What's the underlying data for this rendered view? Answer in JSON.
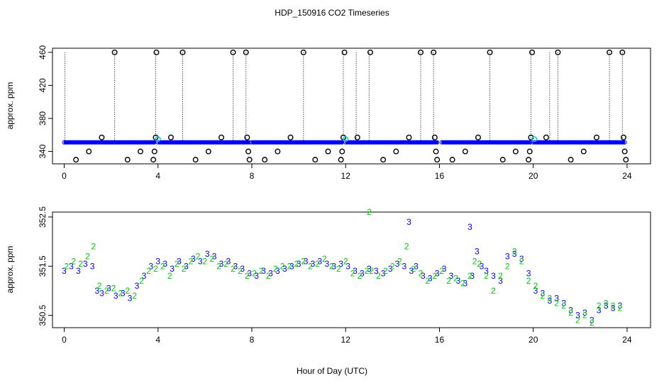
{
  "figure": {
    "title": "HDP_150916  CO2 Timeseries",
    "xlabel": "Hour of Day (UTC)"
  },
  "colors": {
    "axis": "#000000",
    "series_blue": "#0000ff",
    "series_green": "#00cc00",
    "series_cyan": "#00cccc",
    "series_black": "#000000"
  },
  "chart_data": [
    {
      "type": "scatter",
      "title": "",
      "xlabel": "",
      "ylabel": "approx. ppm",
      "xlim": [
        -0.5,
        25
      ],
      "ylim": [
        325,
        465
      ],
      "xticks": [
        0,
        4,
        8,
        12,
        16,
        20,
        24
      ],
      "yticks": [
        340,
        380,
        420,
        460
      ],
      "grid": false,
      "legend": "none",
      "baseline": {
        "value": 351,
        "segments": [
          [
            0.0,
            3.9
          ],
          [
            4.0,
            7.9
          ],
          [
            8.0,
            11.9
          ],
          [
            12.0,
            15.95
          ],
          [
            16.1,
            19.9
          ],
          [
            20.0,
            23.9
          ]
        ],
        "color": "#0000ff"
      },
      "dotted_spikes": [
        0.03,
        2.15,
        3.9,
        5.05,
        7.2,
        7.75,
        10.2,
        11.9,
        12.45,
        13.0,
        15.2,
        15.75,
        18.15,
        19.9,
        20.7,
        21.05,
        23.25,
        23.8
      ],
      "markers_circle": [
        {
          "x": 0.5,
          "y": 330
        },
        {
          "x": 1.05,
          "y": 340
        },
        {
          "x": 1.6,
          "y": 357
        },
        {
          "x": 2.15,
          "y": 460
        },
        {
          "x": 2.7,
          "y": 330
        },
        {
          "x": 3.25,
          "y": 340
        },
        {
          "x": 3.8,
          "y": 330
        },
        {
          "x": 3.85,
          "y": 340
        },
        {
          "x": 3.9,
          "y": 357
        },
        {
          "x": 3.93,
          "y": 460
        },
        {
          "x": 4.55,
          "y": 357
        },
        {
          "x": 5.05,
          "y": 460
        },
        {
          "x": 5.6,
          "y": 330
        },
        {
          "x": 6.15,
          "y": 340
        },
        {
          "x": 6.7,
          "y": 357
        },
        {
          "x": 7.2,
          "y": 460
        },
        {
          "x": 7.75,
          "y": 460
        },
        {
          "x": 7.8,
          "y": 357
        },
        {
          "x": 7.85,
          "y": 340
        },
        {
          "x": 7.9,
          "y": 330
        },
        {
          "x": 8.55,
          "y": 330
        },
        {
          "x": 9.1,
          "y": 340
        },
        {
          "x": 9.65,
          "y": 357
        },
        {
          "x": 10.2,
          "y": 460
        },
        {
          "x": 10.7,
          "y": 330
        },
        {
          "x": 11.25,
          "y": 340
        },
        {
          "x": 11.8,
          "y": 330
        },
        {
          "x": 11.85,
          "y": 340
        },
        {
          "x": 11.9,
          "y": 357
        },
        {
          "x": 11.95,
          "y": 460
        },
        {
          "x": 12.5,
          "y": 357
        },
        {
          "x": 13.05,
          "y": 460
        },
        {
          "x": 13.6,
          "y": 330
        },
        {
          "x": 14.15,
          "y": 340
        },
        {
          "x": 14.7,
          "y": 357
        },
        {
          "x": 15.2,
          "y": 460
        },
        {
          "x": 15.75,
          "y": 460
        },
        {
          "x": 15.8,
          "y": 357
        },
        {
          "x": 15.85,
          "y": 340
        },
        {
          "x": 15.9,
          "y": 330
        },
        {
          "x": 16.55,
          "y": 330
        },
        {
          "x": 17.1,
          "y": 340
        },
        {
          "x": 17.65,
          "y": 357
        },
        {
          "x": 18.15,
          "y": 460
        },
        {
          "x": 18.7,
          "y": 330
        },
        {
          "x": 19.25,
          "y": 340
        },
        {
          "x": 19.8,
          "y": 330
        },
        {
          "x": 19.85,
          "y": 340
        },
        {
          "x": 19.9,
          "y": 357
        },
        {
          "x": 19.95,
          "y": 460
        },
        {
          "x": 20.55,
          "y": 357
        },
        {
          "x": 21.05,
          "y": 460
        },
        {
          "x": 21.6,
          "y": 330
        },
        {
          "x": 22.15,
          "y": 340
        },
        {
          "x": 22.7,
          "y": 357
        },
        {
          "x": 23.25,
          "y": 460
        },
        {
          "x": 23.8,
          "y": 460
        },
        {
          "x": 23.85,
          "y": 357
        },
        {
          "x": 23.9,
          "y": 340
        },
        {
          "x": 23.95,
          "y": 330
        }
      ],
      "markers_cyan": [
        {
          "x": 4.0,
          "y": 355
        },
        {
          "x": 12.0,
          "y": 355
        },
        {
          "x": 20.05,
          "y": 355
        }
      ]
    },
    {
      "type": "line",
      "title": "",
      "xlabel": "",
      "ylabel": "approx. ppm",
      "xlim": [
        -0.5,
        25
      ],
      "ylim": [
        350.25,
        352.6
      ],
      "xticks": [
        0,
        4,
        8,
        12,
        16,
        20,
        24
      ],
      "yticks": [
        350.5,
        351.5,
        352.5
      ],
      "grid": false,
      "legend": "none",
      "point_labels": [
        "2",
        "3"
      ],
      "series": [
        {
          "marker": "3",
          "color": "#0000ff",
          "x": [
            0.0,
            0.3,
            0.6,
            0.9,
            1.2,
            1.4,
            1.6,
            1.9,
            2.2,
            2.5,
            2.8,
            3.1,
            3.4,
            3.7,
            4.0,
            4.3,
            4.6,
            4.9,
            5.2,
            5.5,
            5.8,
            6.1,
            6.4,
            6.7,
            7.0,
            7.3,
            7.6,
            7.9,
            8.2,
            8.5,
            8.8,
            9.1,
            9.4,
            9.7,
            10.0,
            10.3,
            10.6,
            10.9,
            11.2,
            11.5,
            11.8,
            12.1,
            12.4,
            12.7,
            13.0,
            13.3,
            13.6,
            13.9,
            14.2,
            14.5,
            14.7,
            14.8,
            15.0,
            15.3,
            15.6,
            15.9,
            16.2,
            16.5,
            16.8,
            17.1,
            17.3,
            17.4,
            17.6,
            17.8,
            18.0,
            18.3,
            18.6,
            18.9,
            19.2,
            19.5,
            19.8,
            20.1,
            20.4,
            20.7,
            21.0,
            21.3,
            21.6,
            21.9,
            22.2,
            22.5,
            22.8,
            23.1,
            23.4,
            23.7
          ],
          "values": [
            351.4,
            351.5,
            351.4,
            351.55,
            351.5,
            351.0,
            350.95,
            351.05,
            350.9,
            350.95,
            350.85,
            351.1,
            351.3,
            351.5,
            351.6,
            351.55,
            351.45,
            351.6,
            351.5,
            351.65,
            351.6,
            351.75,
            351.7,
            351.55,
            351.6,
            351.5,
            351.45,
            351.35,
            351.3,
            351.4,
            351.35,
            351.4,
            351.45,
            351.5,
            351.55,
            351.6,
            351.55,
            351.6,
            351.55,
            351.5,
            351.55,
            351.5,
            351.4,
            351.35,
            351.45,
            351.4,
            351.35,
            351.45,
            351.55,
            351.5,
            352.4,
            351.4,
            351.5,
            351.3,
            351.25,
            351.35,
            351.45,
            351.3,
            351.2,
            351.15,
            352.3,
            351.3,
            351.8,
            351.5,
            351.4,
            351.3,
            351.2,
            351.7,
            351.75,
            351.65,
            351.35,
            351.0,
            350.95,
            350.8,
            350.85,
            350.75,
            350.6,
            350.5,
            350.55,
            350.4,
            350.6,
            350.7,
            350.65,
            350.7
          ]
        },
        {
          "marker": "2",
          "color": "#00cc00",
          "x": [
            0.1,
            0.4,
            0.7,
            1.0,
            1.25,
            1.5,
            1.8,
            2.1,
            2.4,
            2.7,
            3.0,
            3.3,
            3.6,
            3.9,
            4.2,
            4.5,
            4.8,
            5.1,
            5.4,
            5.7,
            6.0,
            6.3,
            6.6,
            6.9,
            7.2,
            7.5,
            7.8,
            8.1,
            8.4,
            8.7,
            9.0,
            9.3,
            9.6,
            9.9,
            10.2,
            10.5,
            10.8,
            11.1,
            11.4,
            11.7,
            12.0,
            12.3,
            12.6,
            12.9,
            13.0,
            13.1,
            13.4,
            13.7,
            14.0,
            14.3,
            14.6,
            14.9,
            15.2,
            15.5,
            15.8,
            16.1,
            16.4,
            16.7,
            17.0,
            17.3,
            17.5,
            17.7,
            18.0,
            18.3,
            18.6,
            18.9,
            19.2,
            19.5,
            19.8,
            20.1,
            20.4,
            20.7,
            21.0,
            21.3,
            21.6,
            21.9,
            22.2,
            22.5,
            22.8,
            23.1,
            23.4,
            23.7
          ],
          "values": [
            351.5,
            351.6,
            351.55,
            351.7,
            351.9,
            351.1,
            351.0,
            351.05,
            350.95,
            351.0,
            350.9,
            351.2,
            351.4,
            351.45,
            351.5,
            351.3,
            351.55,
            351.45,
            351.6,
            351.7,
            351.6,
            351.65,
            351.5,
            351.55,
            351.45,
            351.4,
            351.3,
            351.35,
            351.4,
            351.3,
            351.45,
            351.5,
            351.5,
            351.55,
            351.6,
            351.5,
            351.55,
            351.65,
            351.5,
            351.45,
            351.6,
            351.35,
            351.3,
            351.4,
            352.6,
            351.4,
            351.3,
            351.4,
            351.5,
            351.6,
            351.9,
            351.45,
            351.35,
            351.2,
            351.3,
            351.4,
            351.2,
            351.25,
            351.15,
            351.3,
            351.6,
            351.55,
            351.3,
            351.0,
            351.3,
            351.5,
            351.8,
            351.6,
            351.2,
            351.1,
            350.9,
            350.85,
            350.75,
            350.7,
            350.55,
            350.4,
            350.5,
            350.35,
            350.7,
            350.75,
            350.7,
            350.65
          ]
        }
      ]
    }
  ]
}
